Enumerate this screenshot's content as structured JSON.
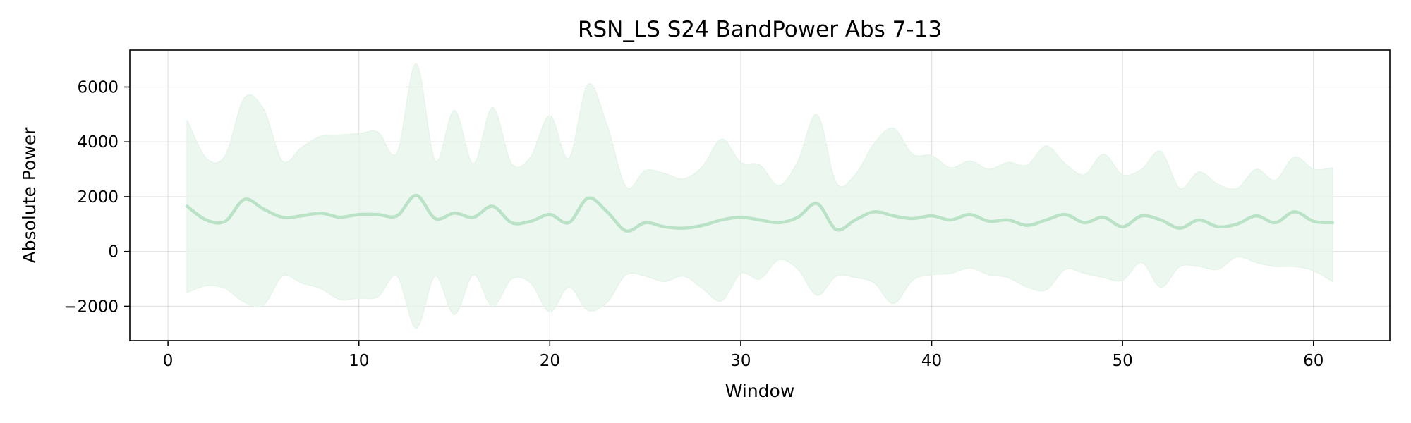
{
  "chart_data": {
    "type": "line",
    "title": "RSN_LS S24 BandPower Abs 7-13",
    "xlabel": "Window",
    "ylabel": "Absolute Power",
    "xlim": [
      -2,
      64
    ],
    "ylim": [
      -3250,
      7350
    ],
    "xticks": [
      0,
      10,
      20,
      30,
      40,
      50,
      60
    ],
    "yticks": [
      -2000,
      0,
      2000,
      4000,
      6000
    ],
    "ytick_labels": [
      "−2000",
      "0",
      "2000",
      "4000",
      "6000"
    ],
    "grid": true,
    "colors": {
      "line": "#b9e2c6",
      "band": "#e6f4ea"
    },
    "series": [
      {
        "x": [
          1,
          2,
          3,
          4,
          5,
          6,
          7,
          8,
          9,
          10,
          11,
          12,
          13,
          14,
          15,
          16,
          17,
          18,
          19,
          20,
          21,
          22,
          23,
          24,
          25,
          26,
          27,
          28,
          29,
          30,
          31,
          32,
          33,
          34,
          35,
          36,
          37,
          38,
          39,
          40,
          41,
          42,
          43,
          44,
          45,
          46,
          47,
          48,
          49,
          50,
          51,
          52,
          53,
          54,
          55,
          56,
          57,
          58,
          59,
          60,
          61
        ],
        "mean": [
          1650,
          1150,
          1100,
          1900,
          1550,
          1250,
          1300,
          1400,
          1250,
          1350,
          1350,
          1300,
          2050,
          1200,
          1400,
          1250,
          1650,
          1050,
          1100,
          1350,
          1050,
          1950,
          1450,
          750,
          1050,
          900,
          850,
          950,
          1150,
          1250,
          1150,
          1050,
          1250,
          1750,
          800,
          1150,
          1450,
          1300,
          1200,
          1300,
          1150,
          1350,
          1100,
          1150,
          950,
          1150,
          1350,
          1050,
          1250,
          900,
          1300,
          1150,
          850,
          1150,
          900,
          1000,
          1300,
          1050,
          1450,
          1100,
          1050
        ],
        "upper": [
          4800,
          3400,
          3500,
          5600,
          5200,
          3300,
          3800,
          4200,
          4250,
          4300,
          4350,
          3600,
          6850,
          3300,
          5150,
          3200,
          5250,
          3200,
          3450,
          4950,
          3400,
          6100,
          4600,
          2350,
          2950,
          2850,
          2650,
          3100,
          4100,
          3250,
          3150,
          2400,
          3300,
          5000,
          2500,
          2800,
          3950,
          4500,
          3550,
          3500,
          3050,
          3300,
          3000,
          3250,
          3150,
          3850,
          3200,
          2800,
          3550,
          2800,
          3000,
          3650,
          2300,
          2900,
          2450,
          2300,
          3000,
          2600,
          3450,
          3000,
          3050
        ],
        "lower": [
          -1500,
          -1250,
          -1350,
          -1850,
          -1950,
          -900,
          -1150,
          -1350,
          -1750,
          -1700,
          -1650,
          -900,
          -2800,
          -900,
          -2300,
          -850,
          -2000,
          -1000,
          -1150,
          -2200,
          -1300,
          -2150,
          -1850,
          -850,
          -900,
          -1100,
          -900,
          -1350,
          -1800,
          -800,
          -1000,
          -300,
          -650,
          -1600,
          -900,
          -950,
          -1150,
          -1900,
          -1050,
          -850,
          -800,
          -600,
          -850,
          -950,
          -1300,
          -1400,
          -650,
          -800,
          -950,
          -1050,
          -400,
          -1300,
          -550,
          -550,
          -650,
          -200,
          -400,
          -550,
          -550,
          -700,
          -1100
        ]
      }
    ]
  }
}
